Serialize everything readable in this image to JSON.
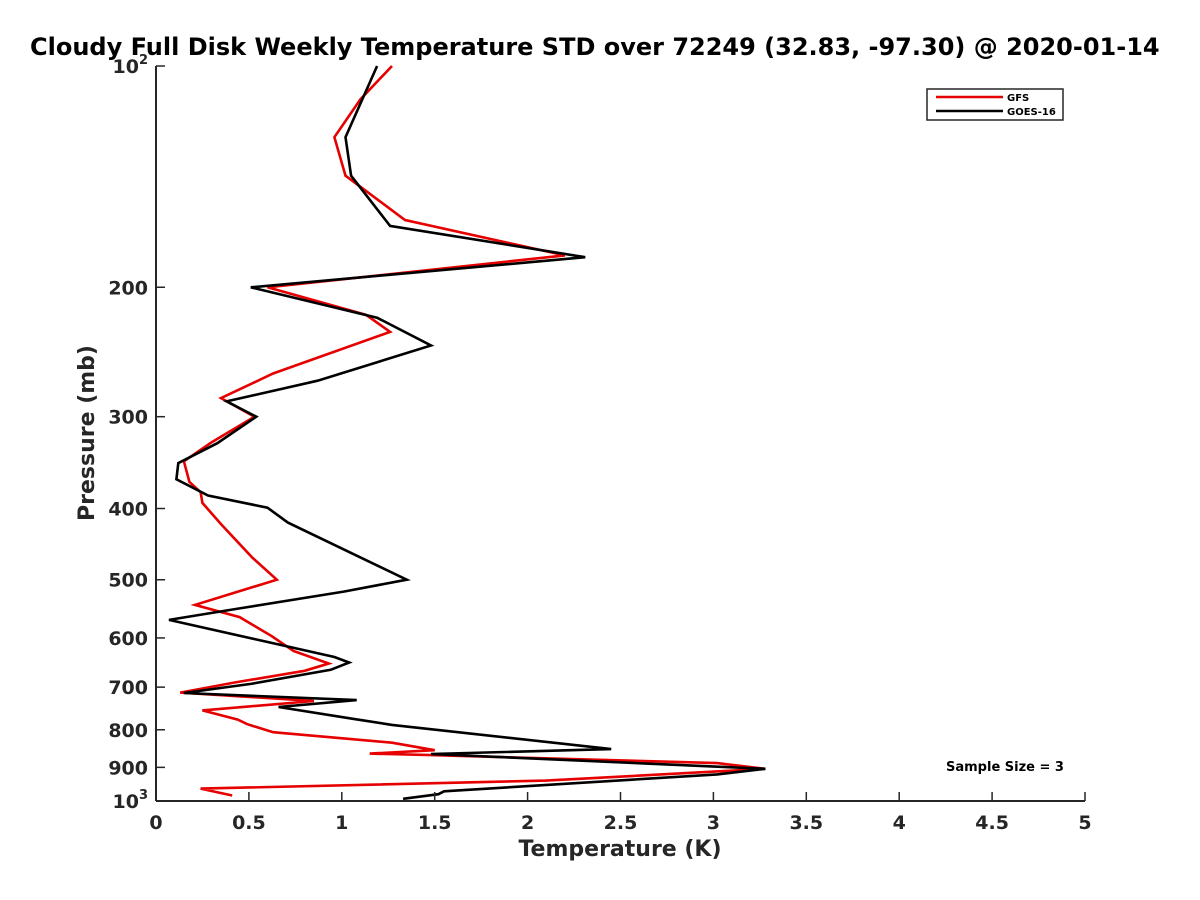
{
  "chart_data": {
    "type": "line",
    "title": "Cloudy Full Disk Weekly Temperature STD over 72249 (32.83, -97.30) @ 2020-01-14",
    "xlabel": "Temperature (K)",
    "ylabel": "Pressure (mb)",
    "xlim": [
      0,
      5
    ],
    "ylim": [
      100,
      1000
    ],
    "y_scale": "log",
    "y_reversed": true,
    "grid": false,
    "legend_position": "top-right",
    "x_ticks": [
      {
        "value": 0,
        "label": "0"
      },
      {
        "value": 0.5,
        "label": "0.5"
      },
      {
        "value": 1,
        "label": "1"
      },
      {
        "value": 1.5,
        "label": "1.5"
      },
      {
        "value": 2,
        "label": "2"
      },
      {
        "value": 2.5,
        "label": "2.5"
      },
      {
        "value": 3,
        "label": "3"
      },
      {
        "value": 3.5,
        "label": "3.5"
      },
      {
        "value": 4,
        "label": "4"
      },
      {
        "value": 4.5,
        "label": "4.5"
      },
      {
        "value": 5,
        "label": "5"
      }
    ],
    "y_ticks": [
      {
        "value": 100,
        "base": "10",
        "exp": "2",
        "label": ""
      },
      {
        "value": 200,
        "label": "200"
      },
      {
        "value": 300,
        "label": "300"
      },
      {
        "value": 400,
        "label": "400"
      },
      {
        "value": 500,
        "label": "500"
      },
      {
        "value": 600,
        "label": "600"
      },
      {
        "value": 700,
        "label": "700"
      },
      {
        "value": 800,
        "label": "800"
      },
      {
        "value": 900,
        "label": "900"
      },
      {
        "value": 1000,
        "base": "10",
        "exp": "3",
        "label": ""
      }
    ],
    "annotation": "Sample Size = 3",
    "series": [
      {
        "name": "GFS",
        "color": "#e60000",
        "points": [
          [
            1.27,
            100
          ],
          [
            1.1,
            111
          ],
          [
            0.96,
            125
          ],
          [
            1.02,
            141
          ],
          [
            1.34,
            162
          ],
          [
            2.2,
            181
          ],
          [
            0.6,
            200
          ],
          [
            1.13,
            218
          ],
          [
            1.26,
            230
          ],
          [
            0.63,
            262
          ],
          [
            0.35,
            283
          ],
          [
            0.53,
            300
          ],
          [
            0.3,
            325
          ],
          [
            0.15,
            345
          ],
          [
            0.18,
            368
          ],
          [
            0.24,
            380
          ],
          [
            0.25,
            393
          ],
          [
            0.35,
            420
          ],
          [
            0.52,
            467
          ],
          [
            0.65,
            500
          ],
          [
            0.21,
            541
          ],
          [
            0.45,
            562
          ],
          [
            0.62,
            596
          ],
          [
            0.74,
            625
          ],
          [
            0.93,
            650
          ],
          [
            0.8,
            665
          ],
          [
            0.42,
            690
          ],
          [
            0.13,
            712
          ],
          [
            0.85,
            731
          ],
          [
            0.25,
            753
          ],
          [
            0.44,
            775
          ],
          [
            0.49,
            786
          ],
          [
            0.63,
            806
          ],
          [
            1.27,
            833
          ],
          [
            1.5,
            853
          ],
          [
            1.15,
            862
          ],
          [
            1.48,
            866
          ],
          [
            3.02,
            888
          ],
          [
            3.28,
            904
          ],
          [
            2.1,
            938
          ],
          [
            0.24,
            962
          ],
          [
            0.41,
            983
          ]
        ]
      },
      {
        "name": "GOES-16",
        "color": "#000000",
        "points": [
          [
            1.19,
            100
          ],
          [
            1.02,
            125
          ],
          [
            1.05,
            141
          ],
          [
            1.26,
            165
          ],
          [
            2.31,
            182
          ],
          [
            0.51,
            200
          ],
          [
            1.19,
            220
          ],
          [
            1.48,
            240
          ],
          [
            0.87,
            268
          ],
          [
            0.38,
            286
          ],
          [
            0.54,
            300
          ],
          [
            0.33,
            326
          ],
          [
            0.12,
            347
          ],
          [
            0.11,
            365
          ],
          [
            0.28,
            384
          ],
          [
            0.6,
            399
          ],
          [
            0.71,
            418
          ],
          [
            1.35,
            500
          ],
          [
            1.01,
            519
          ],
          [
            0.45,
            547
          ],
          [
            0.07,
            567
          ],
          [
            0.96,
            637
          ],
          [
            1.04,
            648
          ],
          [
            0.94,
            663
          ],
          [
            0.51,
            693
          ],
          [
            0.15,
            713
          ],
          [
            1.08,
            729
          ],
          [
            0.66,
            745
          ],
          [
            1.06,
            773
          ],
          [
            1.27,
            788
          ],
          [
            2.45,
            850
          ],
          [
            1.48,
            863
          ],
          [
            3.28,
            904
          ],
          [
            3.02,
            920
          ],
          [
            1.55,
            970
          ],
          [
            1.52,
            979
          ],
          [
            1.33,
            993
          ]
        ]
      }
    ]
  }
}
